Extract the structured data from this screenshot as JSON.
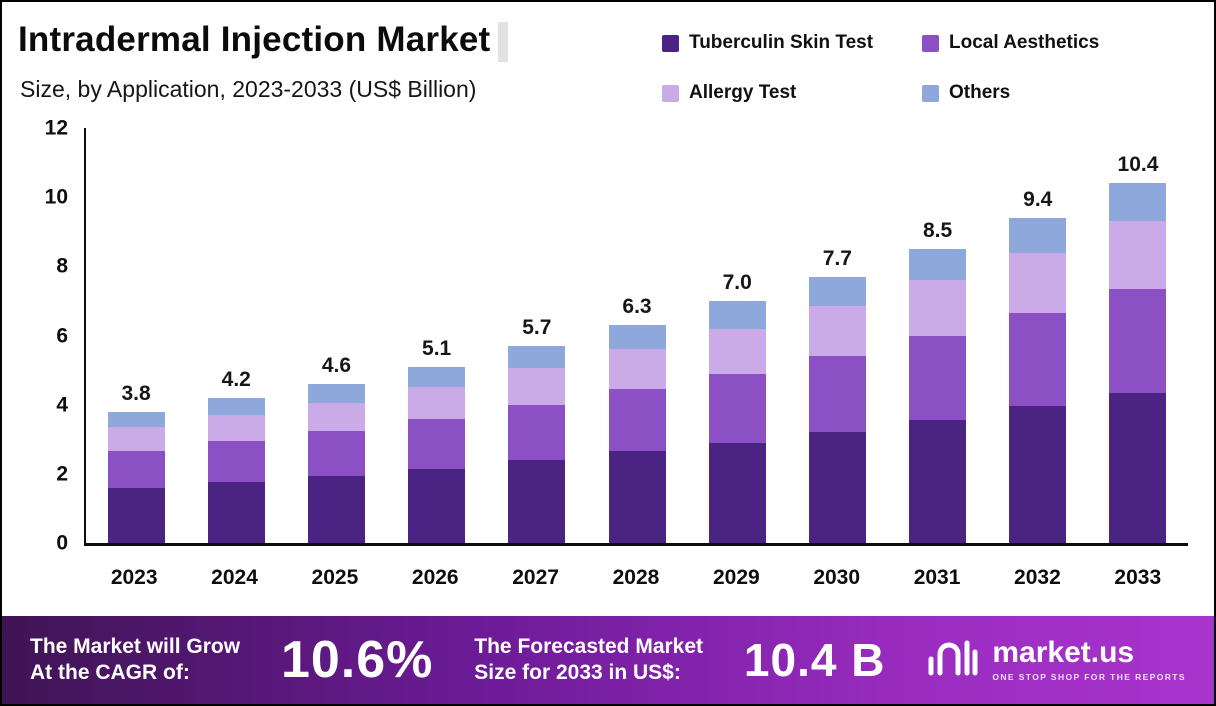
{
  "header": {
    "title": "Intradermal Injection Market",
    "subtitle": "Size, by Application, 2023-2033 (US$ Billion)"
  },
  "chart_data": {
    "type": "bar",
    "stacked": true,
    "title": "Intradermal Injection Market Size, by Application, 2023-2033 (US$ Billion)",
    "xlabel": "",
    "ylabel": "US$ Billion",
    "ylim": [
      0,
      12
    ],
    "yticks": [
      0,
      2,
      4,
      6,
      8,
      10,
      12
    ],
    "grid": false,
    "legend_position": "top-right",
    "categories": [
      "2023",
      "2024",
      "2025",
      "2026",
      "2027",
      "2028",
      "2029",
      "2030",
      "2031",
      "2032",
      "2033"
    ],
    "series": [
      {
        "name": "Tuberculin Skin Test",
        "color": "#4a2383",
        "values": [
          1.6,
          1.75,
          1.95,
          2.15,
          2.4,
          2.65,
          2.9,
          3.2,
          3.55,
          3.95,
          4.35
        ]
      },
      {
        "name": "Local Aesthetics",
        "color": "#8c50c5",
        "values": [
          1.05,
          1.2,
          1.3,
          1.45,
          1.6,
          1.8,
          2.0,
          2.2,
          2.45,
          2.7,
          3.0
        ]
      },
      {
        "name": "Allergy Test",
        "color": "#cbaae8",
        "values": [
          0.7,
          0.75,
          0.8,
          0.9,
          1.05,
          1.15,
          1.3,
          1.45,
          1.6,
          1.75,
          1.95
        ]
      },
      {
        "name": "Others",
        "color": "#8fa8db",
        "values": [
          0.45,
          0.5,
          0.55,
          0.6,
          0.65,
          0.7,
          0.8,
          0.85,
          0.9,
          1.0,
          1.1
        ]
      }
    ],
    "totals": [
      "3.8",
      "4.2",
      "4.6",
      "5.1",
      "5.7",
      "6.3",
      "7.0",
      "7.7",
      "8.5",
      "9.4",
      "10.4"
    ]
  },
  "footer": {
    "cagr_label_line1": "The Market will Grow",
    "cagr_label_line2": "At the CAGR of:",
    "cagr_value": "10.6%",
    "forecast_label_line1": "The Forecasted Market",
    "forecast_label_line2": "Size for 2033 in US$:",
    "forecast_value": "10.4 B",
    "brand": {
      "name": "market.us",
      "tagline": "ONE STOP SHOP FOR THE REPORTS"
    }
  }
}
